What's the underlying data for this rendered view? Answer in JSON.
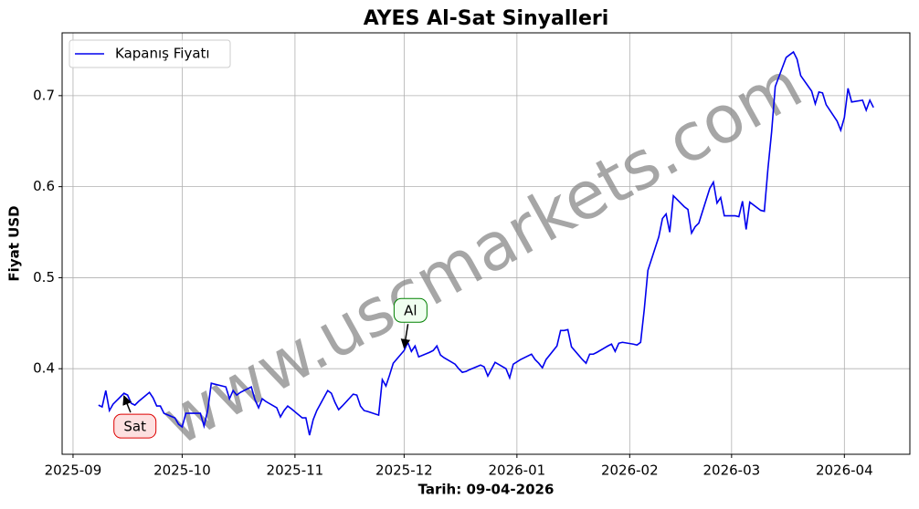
{
  "chart_data": {
    "type": "line",
    "title": "AYES Al-Sat Sinyalleri",
    "xlabel": "Tarih: 09-04-2026",
    "ylabel": "Fiyat USD",
    "watermark": "www.uscmarkets.com",
    "legend": "upper left",
    "grid": true,
    "xlim": [
      "2025-08-29",
      "2026-04-19"
    ],
    "ylim": [
      0.306,
      0.769
    ],
    "xticks": [
      {
        "value": "2025-09-01",
        "label": "2025-09"
      },
      {
        "value": "2025-10-01",
        "label": "2025-10"
      },
      {
        "value": "2025-11-01",
        "label": "2025-11"
      },
      {
        "value": "2025-12-01",
        "label": "2025-12"
      },
      {
        "value": "2026-01-01",
        "label": "2026-01"
      },
      {
        "value": "2026-02-01",
        "label": "2026-02"
      },
      {
        "value": "2026-03-01",
        "label": "2026-03"
      },
      {
        "value": "2026-04-01",
        "label": "2026-04"
      }
    ],
    "yticks": [
      0.4,
      0.5,
      0.6,
      0.7
    ],
    "x": [
      "2025-09-08",
      "2025-09-09",
      "2025-09-10",
      "2025-09-11",
      "2025-09-12",
      "2025-09-15",
      "2025-09-16",
      "2025-09-17",
      "2025-09-18",
      "2025-09-19",
      "2025-09-22",
      "2025-09-23",
      "2025-09-24",
      "2025-09-25",
      "2025-09-26",
      "2025-09-29",
      "2025-09-30",
      "2025-10-01",
      "2025-10-02",
      "2025-10-03",
      "2025-10-06",
      "2025-10-07",
      "2025-10-08",
      "2025-10-09",
      "2025-10-10",
      "2025-10-13",
      "2025-10-14",
      "2025-10-15",
      "2025-10-16",
      "2025-10-17",
      "2025-10-20",
      "2025-10-21",
      "2025-10-22",
      "2025-10-23",
      "2025-10-24",
      "2025-10-27",
      "2025-10-28",
      "2025-10-29",
      "2025-10-30",
      "2025-10-31",
      "2025-11-03",
      "2025-11-04",
      "2025-11-05",
      "2025-11-06",
      "2025-11-07",
      "2025-11-10",
      "2025-11-11",
      "2025-11-12",
      "2025-11-13",
      "2025-11-14",
      "2025-11-17",
      "2025-11-18",
      "2025-11-19",
      "2025-11-20",
      "2025-11-21",
      "2025-11-24",
      "2025-11-25",
      "2025-11-26",
      "2025-11-27",
      "2025-11-28",
      "2025-12-01",
      "2025-12-02",
      "2025-12-03",
      "2025-12-04",
      "2025-12-05",
      "2025-12-08",
      "2025-12-09",
      "2025-12-10",
      "2025-12-11",
      "2025-12-12",
      "2025-12-15",
      "2025-12-16",
      "2025-12-17",
      "2025-12-18",
      "2025-12-19",
      "2025-12-22",
      "2025-12-23",
      "2025-12-24",
      "2025-12-26",
      "2025-12-29",
      "2025-12-30",
      "2025-12-31",
      "2026-01-02",
      "2026-01-05",
      "2026-01-06",
      "2026-01-07",
      "2026-01-08",
      "2026-01-09",
      "2026-01-12",
      "2026-01-13",
      "2026-01-14",
      "2026-01-15",
      "2026-01-16",
      "2026-01-19",
      "2026-01-20",
      "2026-01-21",
      "2026-01-22",
      "2026-01-23",
      "2026-01-26",
      "2026-01-27",
      "2026-01-28",
      "2026-01-29",
      "2026-01-30",
      "2026-02-02",
      "2026-02-03",
      "2026-02-04",
      "2026-02-05",
      "2026-02-06",
      "2026-02-09",
      "2026-02-10",
      "2026-02-11",
      "2026-02-12",
      "2026-02-13",
      "2026-02-16",
      "2026-02-17",
      "2026-02-18",
      "2026-02-19",
      "2026-02-20",
      "2026-02-23",
      "2026-02-24",
      "2026-02-25",
      "2026-02-26",
      "2026-02-27",
      "2026-03-02",
      "2026-03-03",
      "2026-03-04",
      "2026-03-05",
      "2026-03-06",
      "2026-03-09",
      "2026-03-10",
      "2026-03-11",
      "2026-03-12",
      "2026-03-13",
      "2026-03-16",
      "2026-03-17",
      "2026-03-18",
      "2026-03-19",
      "2026-03-20",
      "2026-03-23",
      "2026-03-24",
      "2026-03-25",
      "2026-03-26",
      "2026-03-27",
      "2026-03-30",
      "2026-03-31",
      "2026-04-01",
      "2026-04-02",
      "2026-04-03",
      "2026-04-06",
      "2026-04-07",
      "2026-04-08",
      "2026-04-09"
    ],
    "series": [
      {
        "name": "Kapanış Fiyatı",
        "color": "#0000ee",
        "values": [
          0.36,
          0.358,
          0.376,
          0.354,
          0.361,
          0.373,
          0.371,
          0.362,
          0.36,
          0.364,
          0.374,
          0.368,
          0.359,
          0.359,
          0.351,
          0.346,
          0.339,
          0.336,
          0.351,
          0.351,
          0.351,
          0.337,
          0.354,
          0.384,
          0.383,
          0.38,
          0.367,
          0.376,
          0.371,
          0.374,
          0.38,
          0.366,
          0.357,
          0.367,
          0.364,
          0.357,
          0.347,
          0.354,
          0.359,
          0.356,
          0.346,
          0.346,
          0.327,
          0.344,
          0.354,
          0.376,
          0.373,
          0.363,
          0.355,
          0.359,
          0.372,
          0.371,
          0.359,
          0.354,
          0.353,
          0.349,
          0.388,
          0.381,
          0.393,
          0.406,
          0.42,
          0.429,
          0.419,
          0.425,
          0.413,
          0.418,
          0.42,
          0.425,
          0.415,
          0.412,
          0.405,
          0.4,
          0.396,
          0.397,
          0.399,
          0.404,
          0.402,
          0.392,
          0.407,
          0.4,
          0.39,
          0.405,
          0.41,
          0.416,
          0.41,
          0.406,
          0.401,
          0.41,
          0.425,
          0.442,
          0.442,
          0.443,
          0.424,
          0.41,
          0.406,
          0.416,
          0.416,
          0.418,
          0.425,
          0.427,
          0.419,
          0.428,
          0.429,
          0.427,
          0.426,
          0.429,
          0.465,
          0.508,
          0.545,
          0.565,
          0.57,
          0.55,
          0.59,
          0.578,
          0.575,
          0.549,
          0.556,
          0.56,
          0.598,
          0.605,
          0.582,
          0.588,
          0.568,
          0.568,
          0.567,
          0.584,
          0.553,
          0.583,
          0.574,
          0.573,
          0.62,
          0.66,
          0.71,
          0.742,
          0.745,
          0.748,
          0.74,
          0.722,
          0.705,
          0.691,
          0.704,
          0.703,
          0.69,
          0.672,
          0.662,
          0.676,
          0.708,
          0.693,
          0.695,
          0.684,
          0.695,
          0.687
        ]
      }
    ],
    "annotations": [
      {
        "text": "Sat",
        "x": "2025-09-15",
        "y": 0.373,
        "color": "#dd0000",
        "fill": "#fde0e0"
      },
      {
        "text": "Al",
        "x": "2025-12-01",
        "y": 0.42,
        "color": "#008000",
        "fill": "#f0fff0"
      }
    ]
  }
}
